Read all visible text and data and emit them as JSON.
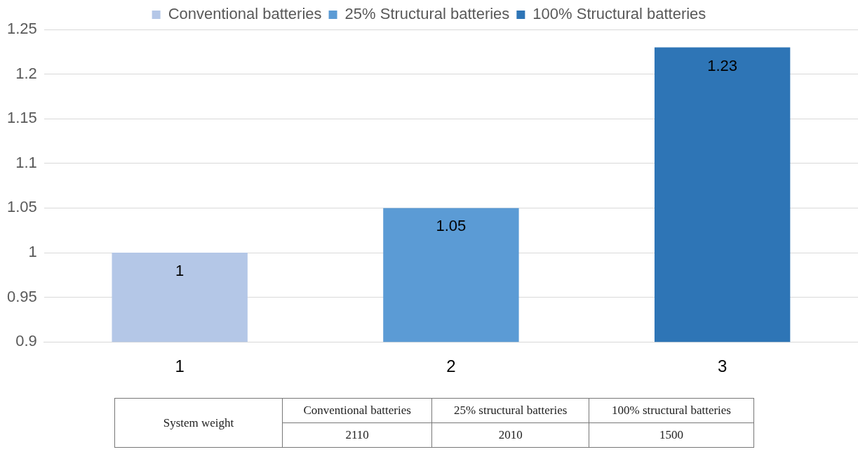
{
  "chart_data": {
    "type": "bar",
    "categories": [
      "1",
      "2",
      "3"
    ],
    "series": [
      {
        "name": "Conventional batteries",
        "color": "#b4c7e7",
        "values": [
          1,
          null,
          null
        ]
      },
      {
        "name": "25% Structural batteries",
        "color": "#5b9bd5",
        "values": [
          null,
          1.05,
          null
        ]
      },
      {
        "name": "100% Structural batteries",
        "color": "#2e75b6",
        "values": [
          null,
          null,
          1.23
        ]
      }
    ],
    "ylim": [
      0.9,
      1.25
    ],
    "yticks": [
      0.9,
      0.95,
      1,
      1.05,
      1.1,
      1.15,
      1.2,
      1.25
    ],
    "grid": "y",
    "legend": "top",
    "data_labels": true,
    "annotations": [
      "System weight",
      "Conventional batteries",
      "25% structural batteries",
      "100% structural batteries",
      "2110",
      "2010",
      "1500"
    ]
  }
}
